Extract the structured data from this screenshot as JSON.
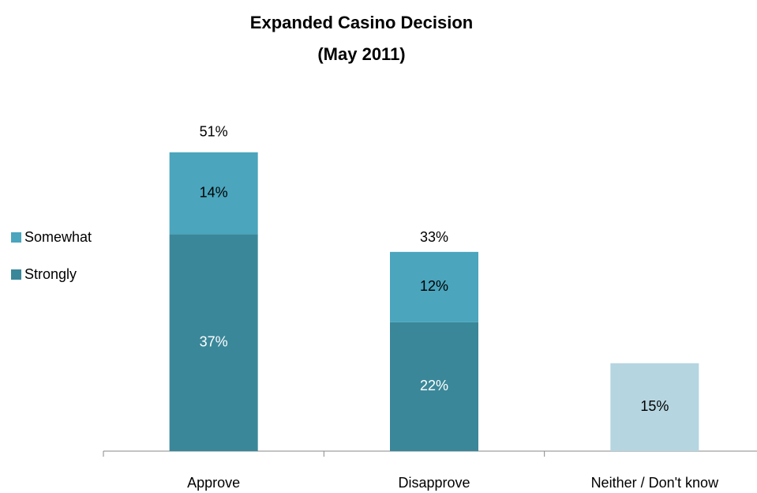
{
  "chart_data": {
    "type": "stacked_bar",
    "title": "Expanded Casino Decision",
    "subtitle": "(May 2011)",
    "categories": [
      "Approve",
      "Disapprove",
      "Neither / Don't know"
    ],
    "series": [
      {
        "name": "Strongly",
        "color": "#3a8799",
        "values": [
          37,
          22,
          null
        ],
        "value_labels": [
          "37%",
          "22%",
          null
        ]
      },
      {
        "name": "Somewhat",
        "color": "#4aa5bd",
        "values": [
          14,
          12,
          null
        ],
        "value_labels": [
          "14%",
          "12%",
          null
        ]
      },
      {
        "color": "#b5d5e0",
        "values": [
          null,
          null,
          15
        ],
        "value_labels": [
          null,
          null,
          "15%"
        ]
      }
    ],
    "totals": [
      51,
      33,
      null
    ],
    "total_labels": [
      "51%",
      "33%",
      null
    ],
    "ylim": [
      0,
      60
    ],
    "legend": "left"
  }
}
